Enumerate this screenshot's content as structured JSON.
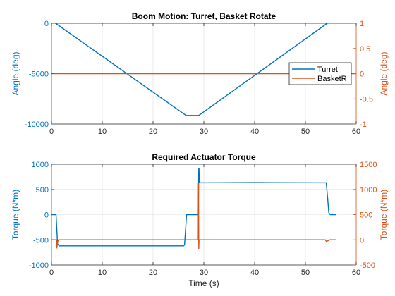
{
  "colors": {
    "left": "#0072BD",
    "right": "#D95319",
    "grid": "#DDDDDD",
    "axis": "#262626"
  },
  "chart_data": [
    {
      "type": "line",
      "title": "Boom Motion: Turret, Basket Rotate",
      "xlabel": "",
      "ylabel_left": "Angle (deg)",
      "ylabel_right": "Angle (deg)",
      "xlim": [
        0,
        60
      ],
      "ylim_left": [
        -10000,
        0
      ],
      "ylim_right": [
        -1,
        1
      ],
      "xticks": [
        0,
        10,
        20,
        30,
        40,
        50,
        60
      ],
      "yticks_left": [
        -10000,
        -5000,
        0
      ],
      "yticks_right": [
        -1,
        -0.5,
        0,
        0.5,
        1
      ],
      "ytick_labels_left": [
        "-10000",
        "-5000",
        "0"
      ],
      "ytick_labels_right": [
        "-1",
        "-0.5",
        "0",
        "0.5",
        "1"
      ],
      "grid": true,
      "legend": {
        "placement": "right",
        "entries": [
          "Turret",
          "BasketR"
        ]
      },
      "series": [
        {
          "name": "Turret",
          "axis": "left",
          "x": [
            0.8,
            26.5,
            29,
            54.3
          ],
          "y": [
            0,
            -9150,
            -9150,
            0
          ]
        },
        {
          "name": "BasketR",
          "axis": "right",
          "x": [
            0,
            60
          ],
          "y": [
            0,
            0
          ]
        }
      ]
    },
    {
      "type": "line",
      "title": "Required Actuator Torque",
      "xlabel": "Time (s)",
      "ylabel_left": "Torque (N*m)",
      "ylabel_right": "Torque (N*m)",
      "xlim": [
        0,
        60
      ],
      "ylim_left": [
        -1000,
        1000
      ],
      "ylim_right": [
        -500,
        1500
      ],
      "xticks": [
        0,
        10,
        20,
        30,
        40,
        50,
        60
      ],
      "yticks_left": [
        -1000,
        -500,
        0,
        500,
        1000
      ],
      "yticks_right": [
        -500,
        0,
        500,
        1000,
        1500
      ],
      "ytick_labels_left": [
        "-1000",
        "-500",
        "0",
        "500",
        "1000"
      ],
      "ytick_labels_right": [
        "-500",
        "0",
        "500",
        "1000",
        "1500"
      ],
      "grid": true,
      "series": [
        {
          "axis": "left",
          "x": [
            0,
            0.9,
            1.0,
            1.2,
            1.5,
            26,
            26.2,
            26.6,
            28.9,
            29.0,
            29.05,
            29.1,
            29.4,
            40,
            54.1,
            54.4,
            54.6,
            54.9,
            56
          ],
          "y": [
            0,
            0,
            -200,
            -580,
            -620,
            -620,
            -600,
            0,
            0,
            920,
            920,
            640,
            630,
            635,
            630,
            300,
            40,
            0,
            0
          ]
        },
        {
          "axis": "right",
          "x": [
            0,
            1.0,
            1.05,
            1.2,
            1.4,
            28.9,
            28.95,
            29.0,
            29.05,
            29.3,
            53.9,
            54.1,
            54.4,
            54.8,
            56
          ],
          "y": [
            0,
            0,
            -170,
            -40,
            0,
            0,
            1120,
            -180,
            0,
            0,
            0,
            -30,
            -20,
            0,
            0
          ]
        }
      ]
    }
  ]
}
